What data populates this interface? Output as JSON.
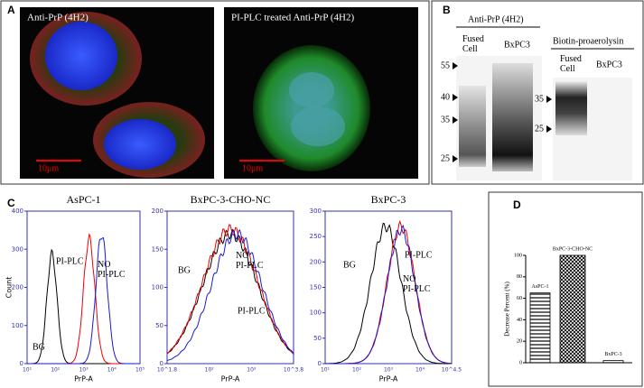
{
  "panel_a": {
    "label": "A",
    "images": [
      {
        "caption": "Anti-PrP (4H2)",
        "scale": "10μm"
      },
      {
        "caption": "PI-PLC   treated Anti-PrP (4H2)",
        "scale": "10μm"
      }
    ]
  },
  "panel_b": {
    "label": "B",
    "left": {
      "title": "Anti-PrP (4H2)",
      "lanes": [
        "Fused\nCell",
        "BxPC3"
      ],
      "markers": [
        "55",
        "40",
        "35",
        "25"
      ]
    },
    "right": {
      "title": "Biotin-proaerolysin",
      "lanes": [
        "Fused\nCell",
        "BxPC3"
      ],
      "markers": [
        "35",
        "25"
      ]
    }
  },
  "panel_c": {
    "label": "C",
    "charts": [
      {
        "title": "AsPC-1",
        "ylabel": "Count",
        "xlabel": "PrP-A",
        "ylim": [
          0,
          400
        ],
        "yticks": [
          0,
          100,
          200,
          300,
          400
        ],
        "xtick_labels": [
          "10¹",
          "10²",
          "10³",
          "10⁴",
          "10⁵"
        ],
        "annotations": [
          "PI-PLC",
          "NO\nPI-PLC",
          "BG"
        ]
      },
      {
        "title": "BxPC-3-CHO-NC",
        "xlabel": "PrP-A",
        "ylim": [
          0,
          200
        ],
        "yticks": [
          0,
          50,
          100,
          150,
          200
        ],
        "xtick_labels": [
          "10^1.8",
          "10²",
          "10³",
          "10^3.8"
        ],
        "annotations": [
          "BG",
          "NO\nPI-PLC",
          "PI-PLC"
        ]
      },
      {
        "title": "BxPC-3",
        "xlabel": "PrP-A",
        "ylim": [
          0,
          300
        ],
        "yticks": [
          0,
          50,
          100,
          150,
          200,
          250,
          300
        ],
        "xtick_labels": [
          "10¹",
          "10²",
          "10³",
          "10⁴",
          "10^4.5"
        ],
        "annotations": [
          "BG",
          "PI-PLC",
          "NO\nPI-PLC"
        ]
      }
    ]
  },
  "panel_d": {
    "label": "D"
  },
  "chart_data": {
    "type": "bar",
    "ylabel": "Decrease Percent (%)",
    "categories": [
      "AsPC-1",
      "BxPC-3-CHO-NC",
      "BxPC-3"
    ],
    "values": [
      65,
      100,
      2
    ],
    "ylim": [
      0,
      100
    ],
    "yticks": [
      0,
      20,
      40,
      60,
      80,
      100
    ]
  }
}
